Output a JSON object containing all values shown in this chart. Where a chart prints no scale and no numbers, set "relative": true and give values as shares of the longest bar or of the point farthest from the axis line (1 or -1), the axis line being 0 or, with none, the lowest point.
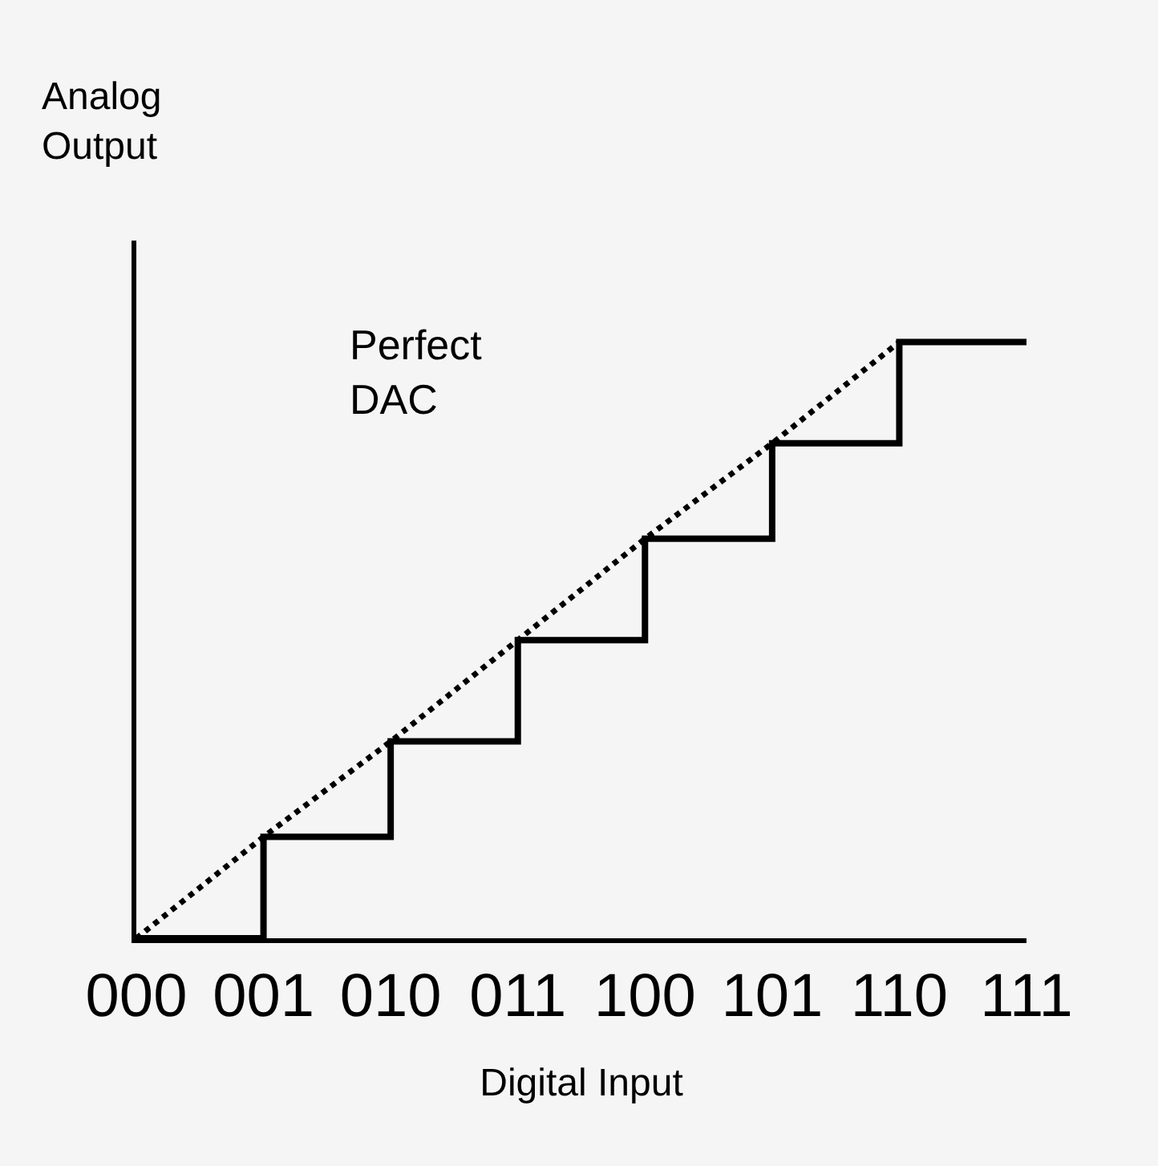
{
  "chart_data": {
    "type": "step",
    "xlabel": "Digital Input",
    "ylabel": "Analog Output",
    "categories": [
      "000",
      "001",
      "010",
      "011",
      "100",
      "101",
      "110",
      "111"
    ],
    "relative": true,
    "grid": false,
    "legend": false,
    "tick_labels": "x",
    "marker": "none",
    "series": [
      {
        "color": "#000000",
        "line_style": "solid",
        "values": [
          0,
          0.17,
          0.33,
          0.5,
          0.67,
          0.83,
          1,
          1
        ]
      },
      {
        "type": "line",
        "name": "Perfect DAC",
        "color": "#000000",
        "line_style": "dotted",
        "values": [
          0,
          0.17,
          0.33,
          0.5,
          0.67,
          0.83,
          1,
          null
        ]
      }
    ]
  }
}
